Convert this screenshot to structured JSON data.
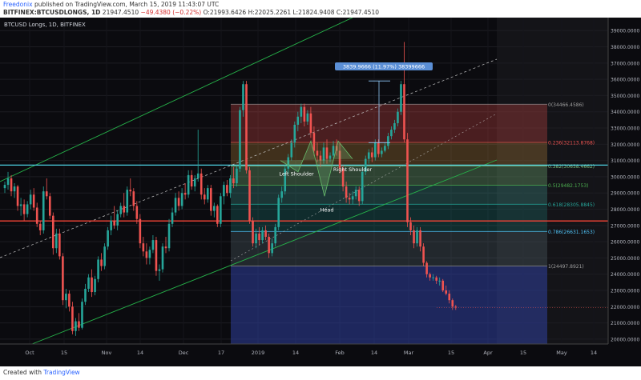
{
  "header": {
    "author": "Freedonix",
    "published": "published on TradingView.com, March 15, 2019 11:43:07 UTC",
    "symbol": "BITFINEX:BTCUSDLONGS, 1D",
    "last": "21947.4510",
    "change": "−49.4380 (−0.22%)",
    "ohlc": "O:21993.6426 H:22025.2261 L:21824.9408 C:21947.4510"
  },
  "chart_title": "BTCUSD Longs, 1D, BITFINEX",
  "footer": {
    "created": "Created with",
    "brand": "TradingView"
  },
  "colors": {
    "bg": "#0b0b0f",
    "up": "#26a69a",
    "down": "#ef5350",
    "channel": "#26b34a",
    "fib_box": "#ffffff"
  },
  "chart_data": {
    "type": "candlestick",
    "title": "BTCUSD Longs, 1D, BITFINEX",
    "y_axis_ticks": [
      "39000.0000",
      "38000.0000",
      "37000.0000",
      "36000.0000",
      "35000.0000",
      "34000.0000",
      "33000.0000",
      "32000.0000",
      "31000.0000",
      "30000.0000",
      "29000.0000",
      "28000.0000",
      "27000.0000",
      "26000.0000",
      "25000.0000",
      "24000.0000",
      "23000.0000",
      "22000.0000",
      "21000.0000",
      "20000.0000"
    ],
    "ylim": [
      19700,
      39800
    ],
    "x_axis_ticks": [
      "Oct",
      "15",
      "Nov",
      "14",
      "Dec",
      "17",
      "2019",
      "14",
      "Feb",
      "14",
      "Mar",
      "15",
      "Apr",
      "15",
      "May",
      "14"
    ],
    "fib_levels": [
      {
        "label": "0(34466.4586)",
        "value": 34466.4586
      },
      {
        "label": "0.236(32113.8768)",
        "value": 32113.8768
      },
      {
        "label": "0.382(30658.4662)",
        "value": 30658.4662
      },
      {
        "label": "0.5(29482.1753)",
        "value": 29482.1753
      },
      {
        "label": "0.618(28305.8845)",
        "value": 28305.8845
      },
      {
        "label": "0.786(26631.1653)",
        "value": 26631.1653
      },
      {
        "label": "1(24497.8921)",
        "value": 24497.8921
      }
    ],
    "horizontal_lines": [
      {
        "label": "30718.3102",
        "value": 30718.3102,
        "color": "#4dd0e1"
      },
      {
        "label": "27278.3983",
        "value": 27278.3983,
        "color": "#f44336"
      }
    ],
    "price_label": {
      "label": "21947.4510",
      "value": 21947.451
    },
    "measure_label": "3839.9666 (11.97%) 38399666",
    "annotations": [
      "Left Shoulder",
      "Head",
      "Right Shoulder"
    ],
    "candles": [
      [
        29300,
        29700,
        29000,
        29500
      ],
      [
        29500,
        30300,
        29200,
        29900
      ],
      [
        29900,
        30100,
        28800,
        29100
      ],
      [
        29100,
        29600,
        28700,
        29400
      ],
      [
        29400,
        29500,
        27900,
        28200
      ],
      [
        28200,
        28700,
        27600,
        28300
      ],
      [
        28300,
        28600,
        27300,
        27700
      ],
      [
        27700,
        28500,
        27500,
        28300
      ],
      [
        28300,
        29200,
        28000,
        28900
      ],
      [
        28900,
        29300,
        27900,
        28100
      ],
      [
        28100,
        28400,
        26900,
        27100
      ],
      [
        27100,
        27300,
        26400,
        26700
      ],
      [
        26700,
        29400,
        26500,
        29100
      ],
      [
        29100,
        29900,
        28600,
        28800
      ],
      [
        28800,
        29000,
        27400,
        27600
      ],
      [
        27600,
        27800,
        25200,
        25600
      ],
      [
        25600,
        26800,
        25300,
        26500
      ],
      [
        26500,
        26800,
        24900,
        25100
      ],
      [
        25100,
        25300,
        22100,
        22400
      ],
      [
        22400,
        23100,
        21900,
        22800
      ],
      [
        22800,
        23000,
        21700,
        22000
      ],
      [
        22000,
        22300,
        20300,
        20500
      ],
      [
        20500,
        21300,
        20200,
        21100
      ],
      [
        21100,
        21600,
        20500,
        20700
      ],
      [
        20700,
        22500,
        20600,
        22300
      ],
      [
        22300,
        23400,
        22100,
        23100
      ],
      [
        23100,
        24000,
        22900,
        23800
      ],
      [
        23800,
        24300,
        22600,
        22900
      ],
      [
        22900,
        23900,
        22700,
        23700
      ],
      [
        23700,
        25100,
        23500,
        24900
      ],
      [
        24900,
        25300,
        24200,
        24500
      ],
      [
        24500,
        25900,
        24300,
        25700
      ],
      [
        25700,
        26900,
        25500,
        26700
      ],
      [
        26700,
        27600,
        26400,
        27300
      ],
      [
        27300,
        28200,
        26800,
        27000
      ],
      [
        27000,
        27900,
        26700,
        27700
      ],
      [
        27700,
        28400,
        27500,
        28200
      ],
      [
        28200,
        29000,
        27500,
        27800
      ],
      [
        27800,
        29400,
        27600,
        29200
      ],
      [
        29200,
        29900,
        28800,
        29100
      ],
      [
        29100,
        29300,
        27900,
        28200
      ],
      [
        28200,
        28500,
        27100,
        27400
      ],
      [
        27400,
        27700,
        25600,
        25900
      ],
      [
        25900,
        26300,
        25100,
        25400
      ],
      [
        25400,
        25900,
        24600,
        25000
      ],
      [
        25000,
        25700,
        24600,
        25500
      ],
      [
        25500,
        26400,
        25300,
        26100
      ],
      [
        26100,
        26300,
        23900,
        24200
      ],
      [
        24200,
        24600,
        23600,
        24300
      ],
      [
        24300,
        25900,
        24100,
        25700
      ],
      [
        25700,
        26300,
        25300,
        25600
      ],
      [
        25600,
        27400,
        25400,
        27100
      ],
      [
        27100,
        28100,
        26900,
        27800
      ],
      [
        27800,
        29000,
        27600,
        28700
      ],
      [
        28700,
        29100,
        27900,
        28200
      ],
      [
        28200,
        29300,
        28000,
        29000
      ],
      [
        29000,
        29600,
        28600,
        28900
      ],
      [
        28900,
        30400,
        28700,
        30100
      ],
      [
        30100,
        30400,
        29200,
        29400
      ],
      [
        29400,
        30100,
        29100,
        29900
      ],
      [
        29900,
        32900,
        29700,
        30200
      ],
      [
        30200,
        30500,
        28600,
        28900
      ],
      [
        28900,
        29300,
        28300,
        28600
      ],
      [
        28600,
        29500,
        28400,
        29300
      ],
      [
        29300,
        29500,
        27600,
        27900
      ],
      [
        27900,
        28400,
        27500,
        28200
      ],
      [
        28200,
        28300,
        26900,
        27100
      ],
      [
        27100,
        29000,
        26900,
        28800
      ],
      [
        28800,
        29700,
        28300,
        29500
      ],
      [
        29500,
        29800,
        28800,
        29000
      ],
      [
        29000,
        30100,
        28700,
        29900
      ],
      [
        29900,
        30600,
        29300,
        29600
      ],
      [
        29600,
        30700,
        29400,
        30500
      ],
      [
        30500,
        34300,
        30300,
        34100
      ],
      [
        34100,
        35900,
        33700,
        35700
      ],
      [
        35700,
        35900,
        30200,
        30400
      ],
      [
        30400,
        30600,
        27100,
        27300
      ],
      [
        27300,
        27500,
        25700,
        25900
      ],
      [
        25900,
        26800,
        25600,
        26500
      ],
      [
        26500,
        26900,
        25800,
        26100
      ],
      [
        26100,
        26900,
        25900,
        26700
      ],
      [
        26700,
        27000,
        26100,
        26300
      ],
      [
        26300,
        26500,
        25000,
        25300
      ],
      [
        25300,
        26200,
        25100,
        25900
      ],
      [
        25900,
        27100,
        25700,
        26900
      ],
      [
        26900,
        28900,
        26700,
        28700
      ],
      [
        28700,
        29400,
        28400,
        29100
      ],
      [
        29100,
        30700,
        28900,
        30500
      ],
      [
        30500,
        31400,
        30200,
        31200
      ],
      [
        31200,
        32300,
        31000,
        32100
      ],
      [
        32100,
        33400,
        31800,
        33200
      ],
      [
        33200,
        34000,
        32800,
        33700
      ],
      [
        33700,
        34500,
        33300,
        34300
      ],
      [
        34300,
        34500,
        33100,
        33400
      ],
      [
        33400,
        34100,
        33200,
        33900
      ],
      [
        33900,
        34300,
        32400,
        32700
      ],
      [
        32700,
        33100,
        31300,
        31600
      ],
      [
        31600,
        32100,
        30900,
        31300
      ],
      [
        31300,
        31600,
        30600,
        31000
      ],
      [
        31000,
        32100,
        30800,
        31800
      ],
      [
        31800,
        32300,
        30800,
        31100
      ],
      [
        31100,
        31500,
        30900,
        31300
      ],
      [
        31300,
        32200,
        31100,
        31900
      ],
      [
        31900,
        32300,
        31300,
        31600
      ],
      [
        31600,
        32100,
        30200,
        30500
      ],
      [
        30500,
        30700,
        29100,
        29400
      ],
      [
        29400,
        29700,
        28400,
        28700
      ],
      [
        28700,
        29000,
        28300,
        28600
      ],
      [
        28600,
        29100,
        28300,
        28800
      ],
      [
        28800,
        29400,
        28600,
        29200
      ],
      [
        29200,
        29400,
        28200,
        28500
      ],
      [
        28500,
        30600,
        28300,
        30300
      ],
      [
        30300,
        31300,
        30100,
        31100
      ],
      [
        31100,
        31700,
        30800,
        31500
      ],
      [
        31500,
        31800,
        30900,
        31200
      ],
      [
        31200,
        32300,
        31000,
        32100
      ],
      [
        32100,
        32300,
        31200,
        31400
      ],
      [
        31400,
        31800,
        31200,
        31600
      ],
      [
        31600,
        32100,
        31500,
        31900
      ],
      [
        31900,
        32700,
        31700,
        32500
      ],
      [
        32500,
        33100,
        32300,
        32900
      ],
      [
        32900,
        33500,
        32700,
        33300
      ],
      [
        33300,
        34200,
        33100,
        34000
      ],
      [
        34000,
        35900,
        33800,
        35700
      ],
      [
        35700,
        38300,
        32100,
        32300
      ],
      [
        32300,
        32700,
        26900,
        27200
      ],
      [
        27200,
        27500,
        26400,
        26700
      ],
      [
        26700,
        27000,
        25600,
        25900
      ],
      [
        25900,
        26900,
        25700,
        26700
      ],
      [
        26700,
        26900,
        25400,
        25700
      ],
      [
        25700,
        25900,
        24500,
        24700
      ],
      [
        24700,
        24800,
        23800,
        24000
      ],
      [
        24000,
        24100,
        23600,
        23800
      ],
      [
        23800,
        24000,
        23600,
        23800
      ],
      [
        23800,
        23900,
        23400,
        23600
      ],
      [
        23600,
        23800,
        23300,
        23600
      ],
      [
        23600,
        23700,
        22900,
        23000
      ],
      [
        23000,
        23300,
        22700,
        22800
      ],
      [
        22800,
        23000,
        22200,
        22400
      ],
      [
        22400,
        22500,
        21800,
        22000
      ],
      [
        22000,
        22100,
        21800,
        21947
      ]
    ]
  }
}
